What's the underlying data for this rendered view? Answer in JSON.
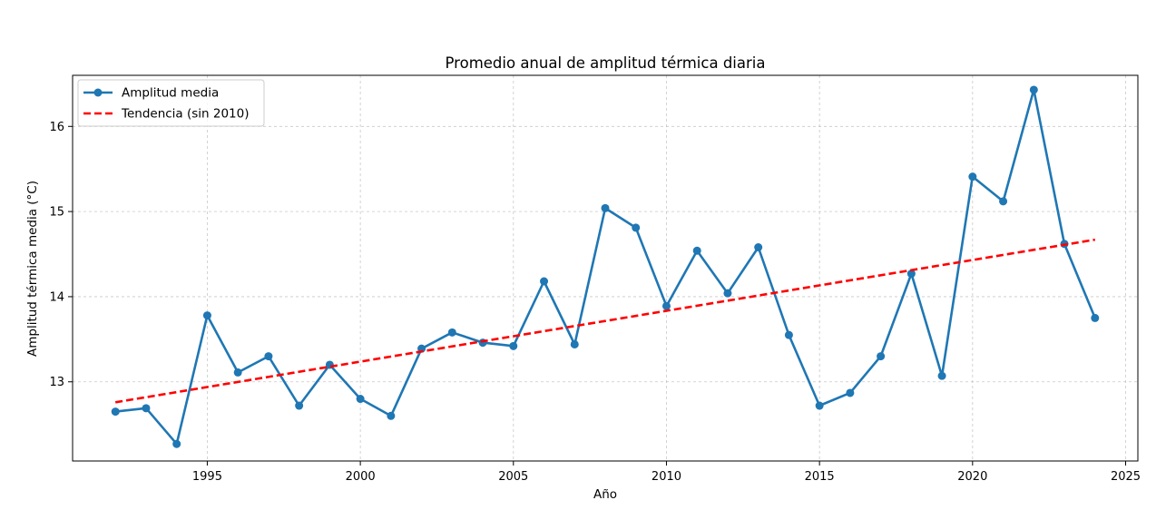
{
  "chart_data": {
    "type": "line",
    "title": "Promedio anual de amplitud térmica diaria",
    "xlabel": "Año",
    "ylabel": "Amplitud térmica media (°C)",
    "xlim": [
      1990.6,
      2025.4
    ],
    "ylim": [
      12.07,
      16.6
    ],
    "xticks": [
      1995,
      2000,
      2005,
      2010,
      2015,
      2020,
      2025
    ],
    "yticks": [
      13,
      14,
      15,
      16
    ],
    "grid": true,
    "legend_position": "top-left",
    "series": [
      {
        "name": "Amplitud media",
        "color": "#1f77b4",
        "style": "solid-line-with-markers",
        "x": [
          1992,
          1993,
          1994,
          1995,
          1996,
          1997,
          1998,
          1999,
          2000,
          2001,
          2002,
          2003,
          2004,
          2005,
          2006,
          2007,
          2008,
          2009,
          2010,
          2011,
          2012,
          2013,
          2014,
          2015,
          2016,
          2017,
          2018,
          2019,
          2020,
          2021,
          2022,
          2023,
          2024
        ],
        "values": [
          12.65,
          12.69,
          12.27,
          13.78,
          13.11,
          13.3,
          12.72,
          13.2,
          12.8,
          12.6,
          13.39,
          13.58,
          13.46,
          13.42,
          14.18,
          13.44,
          15.04,
          14.81,
          13.89,
          14.54,
          14.04,
          14.58,
          13.55,
          12.72,
          12.87,
          13.3,
          14.27,
          13.07,
          15.41,
          15.12,
          16.43,
          14.62,
          13.75
        ]
      },
      {
        "name": "Tendencia (sin 2010)",
        "color": "#ff0000",
        "style": "dashed-line",
        "x": [
          1992,
          2024
        ],
        "values": [
          12.76,
          14.67
        ]
      }
    ]
  }
}
